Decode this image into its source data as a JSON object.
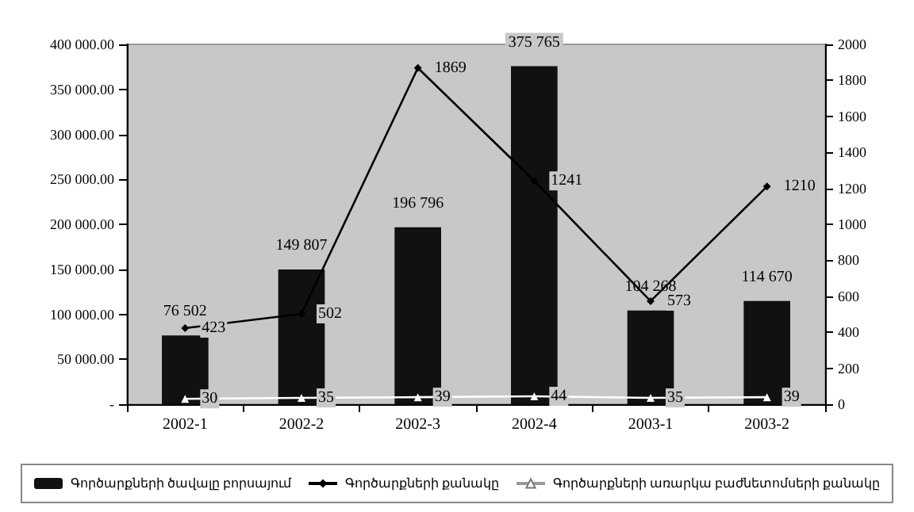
{
  "chart_data": {
    "type": "bar",
    "categories": [
      "2002-1",
      "2002-2",
      "2002-3",
      "2002-4",
      "2003-1",
      "2003-2"
    ],
    "series": [
      {
        "name": "Գործարքների ծավալը բորսայում",
        "color": "#111111",
        "values": [
          76502,
          149807,
          196796,
          375765,
          104268,
          114670
        ],
        "value_labels": [
          "76 502",
          "149 807",
          "196 796",
          "375 765",
          "104 268",
          "114 670"
        ]
      },
      {
        "name": "Գործարքների քանակը",
        "type": "line",
        "axis": "y2",
        "color": "#000000",
        "marker": "diamond",
        "values": [
          423,
          502,
          1869,
          1241,
          573,
          1210
        ]
      },
      {
        "name": "Գործարքների առարկա բաժնետոմսերի քանակը",
        "type": "line",
        "axis": "y2",
        "color": "#ffffff",
        "marker": "triangle",
        "values": [
          30,
          35,
          39,
          44,
          35,
          39
        ]
      }
    ],
    "ylim": [
      0,
      400000
    ],
    "yticks": [
      {
        "value": 0,
        "label": "-"
      },
      {
        "value": 50000,
        "label": "50 000.00"
      },
      {
        "value": 100000,
        "label": "100 000.00"
      },
      {
        "value": 150000,
        "label": "150 000.00"
      },
      {
        "value": 200000,
        "label": "200 000.00"
      },
      {
        "value": 250000,
        "label": "250 000.00"
      },
      {
        "value": 300000,
        "label": "300 000.00"
      },
      {
        "value": 350000,
        "label": "350 000.00"
      },
      {
        "value": 400000,
        "label": "400 000.00"
      }
    ],
    "y2lim": [
      0,
      2000
    ],
    "y2ticks": [
      0,
      200,
      400,
      600,
      800,
      1000,
      1200,
      1400,
      1600,
      1800,
      2000
    ],
    "data_labels": true,
    "grid": false,
    "legend": "bottom"
  }
}
